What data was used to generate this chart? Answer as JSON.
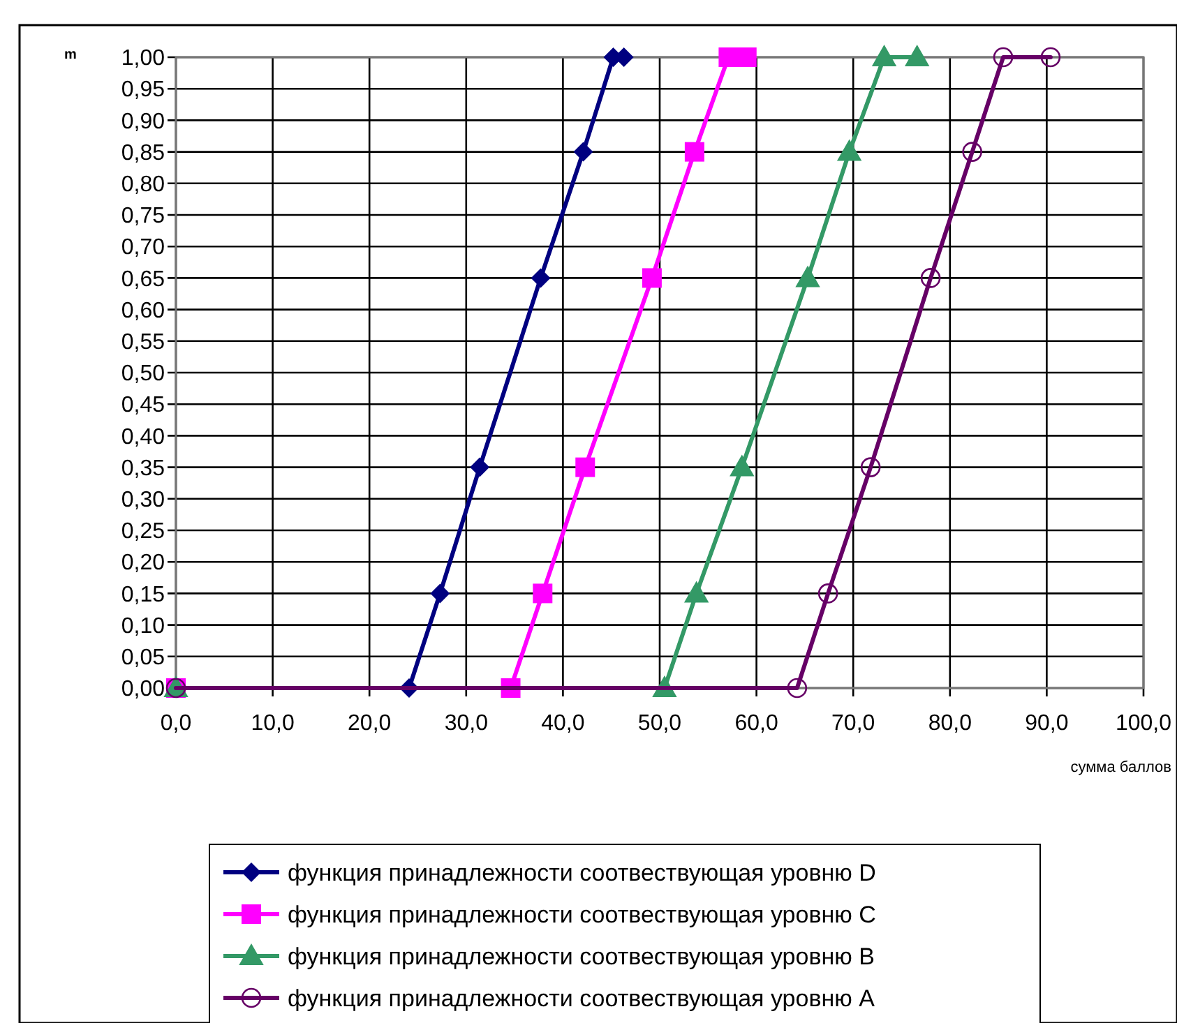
{
  "chart_data": {
    "type": "line",
    "ylabel": "m",
    "xlabel": "сумма баллов",
    "xlim": [
      0,
      100
    ],
    "ylim": [
      0,
      1
    ],
    "xticks": [
      {
        "value": 0,
        "label": "0,0"
      },
      {
        "value": 10,
        "label": "10,0"
      },
      {
        "value": 20,
        "label": "20,0"
      },
      {
        "value": 30,
        "label": "30,0"
      },
      {
        "value": 40,
        "label": "40,0"
      },
      {
        "value": 50,
        "label": "50,0"
      },
      {
        "value": 60,
        "label": "60,0"
      },
      {
        "value": 70,
        "label": "70,0"
      },
      {
        "value": 80,
        "label": "80,0"
      },
      {
        "value": 90,
        "label": "90,0"
      },
      {
        "value": 100,
        "label": "100,0"
      }
    ],
    "yticks": [
      {
        "value": 0,
        "label": "0,00"
      },
      {
        "value": 0.05,
        "label": "0,05"
      },
      {
        "value": 0.1,
        "label": "0,10"
      },
      {
        "value": 0.15,
        "label": "0,15"
      },
      {
        "value": 0.2,
        "label": "0,20"
      },
      {
        "value": 0.25,
        "label": "0,25"
      },
      {
        "value": 0.3,
        "label": "0,30"
      },
      {
        "value": 0.35,
        "label": "0,35"
      },
      {
        "value": 0.4,
        "label": "0,40"
      },
      {
        "value": 0.45,
        "label": "0,45"
      },
      {
        "value": 0.5,
        "label": "0,50"
      },
      {
        "value": 0.55,
        "label": "0,55"
      },
      {
        "value": 0.6,
        "label": "0,60"
      },
      {
        "value": 0.65,
        "label": "0,65"
      },
      {
        "value": 0.7,
        "label": "0,70"
      },
      {
        "value": 0.75,
        "label": "0,75"
      },
      {
        "value": 0.8,
        "label": "0,80"
      },
      {
        "value": 0.85,
        "label": "0,85"
      },
      {
        "value": 0.9,
        "label": "0,90"
      },
      {
        "value": 0.95,
        "label": "0,95"
      },
      {
        "value": 1,
        "label": "1,00"
      }
    ],
    "grid": true,
    "legend": "bottom",
    "series": [
      {
        "name": "функция принадлежности соотвествующая уровню D",
        "color": "#000080",
        "marker": "diamond",
        "x": [
          0,
          24.1,
          27.3,
          31.4,
          37.7,
          42.1,
          45.2,
          46.3
        ],
        "values": [
          0,
          0,
          0.15,
          0.35,
          0.65,
          0.85,
          1,
          1
        ]
      },
      {
        "name": "функция принадлежности соотвествующая уровню C",
        "color": "#ff00ff",
        "marker": "square",
        "x": [
          0,
          34.6,
          37.9,
          42.3,
          49.2,
          53.6,
          57.1,
          59.0
        ],
        "values": [
          0,
          0,
          0.15,
          0.35,
          0.65,
          0.85,
          1,
          1
        ]
      },
      {
        "name": "функция принадлежности соотвествующая уровню B",
        "color": "#339966",
        "marker": "triangle",
        "x": [
          0,
          50.5,
          53.8,
          58.5,
          65.3,
          69.6,
          73.2,
          76.6
        ],
        "values": [
          0,
          0,
          0.15,
          0.35,
          0.65,
          0.85,
          1,
          1
        ]
      },
      {
        "name": "функция принадлежности соотвествующая уровню A",
        "color": "#660066",
        "marker": "circle",
        "x": [
          0,
          64.2,
          67.4,
          71.8,
          78.0,
          82.3,
          85.5,
          90.4
        ],
        "values": [
          0,
          0,
          0.15,
          0.35,
          0.65,
          0.85,
          1,
          1
        ]
      }
    ]
  }
}
